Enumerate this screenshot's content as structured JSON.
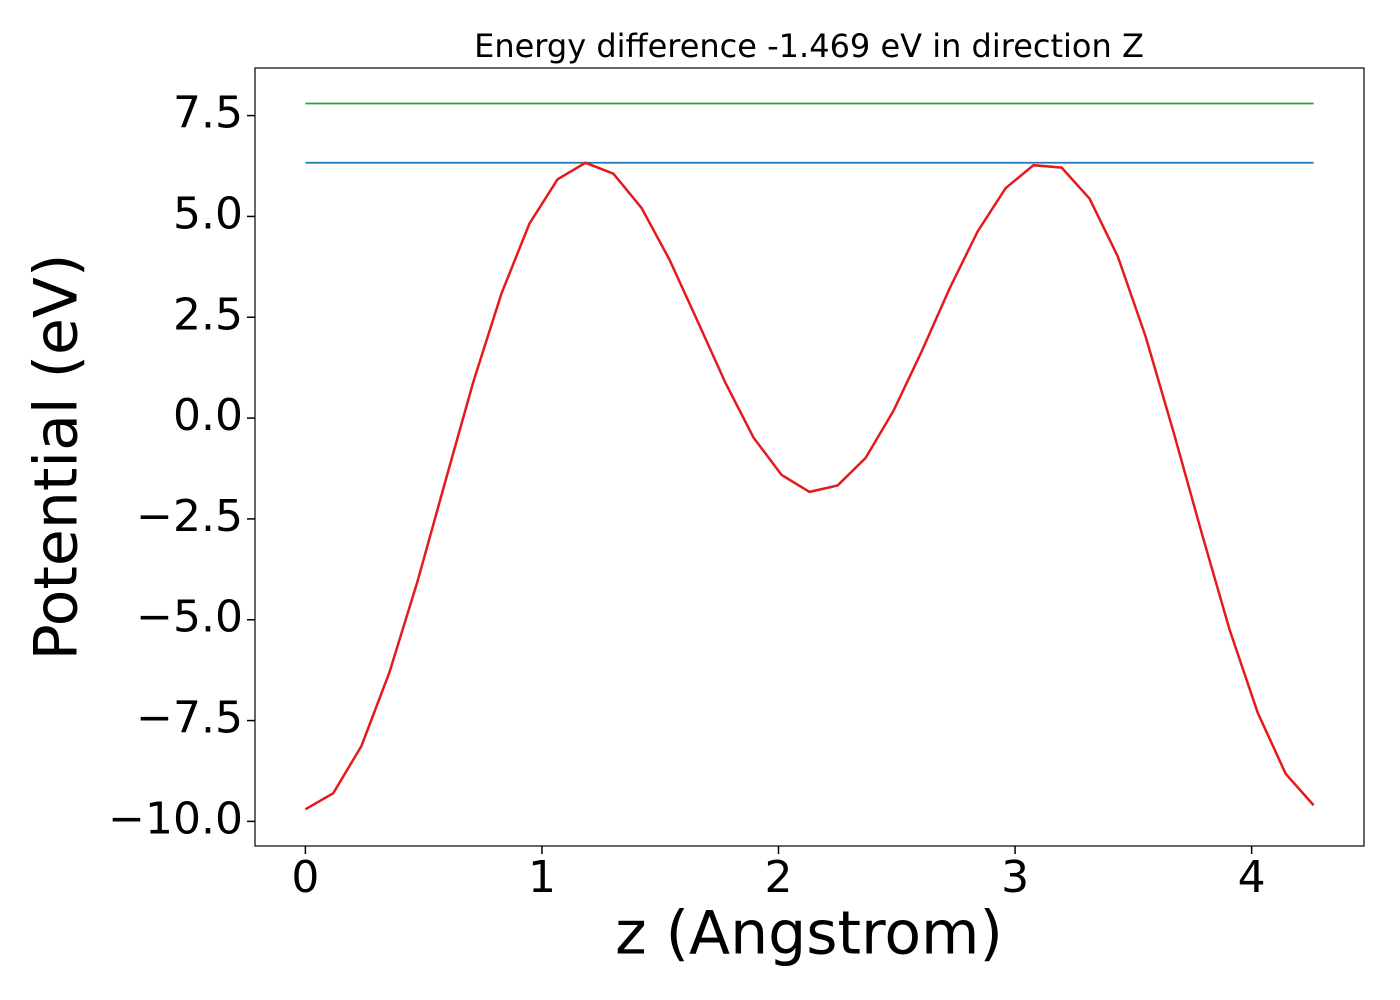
{
  "chart_data": {
    "type": "line",
    "title": "Energy difference -1.469 eV in direction Z",
    "x_label": "z (Angstrom)",
    "y_label": "Potential (eV)",
    "xlim": [
      -0.213,
      4.475
    ],
    "ylim": [
      -10.61,
      8.68
    ],
    "xticks": [
      0,
      1,
      2,
      3,
      4
    ],
    "yticks": [
      {
        "value": -10,
        "label": "−10.0"
      },
      {
        "value": -7.5,
        "label": "−7.5"
      },
      {
        "value": -5,
        "label": "−5.0"
      },
      {
        "value": -2.5,
        "label": "−2.5"
      },
      {
        "value": 0,
        "label": "0.0"
      },
      2.5,
      {
        "value": 5,
        "label": "5.0"
      },
      7.5
    ],
    "series": [
      {
        "color": "#1f77b4",
        "x": [
          0,
          4.262
        ],
        "values": [
          6.33,
          6.33
        ]
      },
      {
        "color": "#2ca02c",
        "x": [
          0,
          4.262
        ],
        "values": [
          7.8,
          7.8
        ]
      },
      {
        "color": "#e41a1c",
        "x": [
          0,
          0.118,
          0.237,
          0.355,
          0.474,
          0.592,
          0.71,
          0.829,
          0.947,
          1.066,
          1.184,
          1.302,
          1.421,
          1.539,
          1.658,
          1.776,
          1.894,
          2.013,
          2.131,
          2.25,
          2.368,
          2.486,
          2.605,
          2.723,
          2.842,
          2.96,
          3.078,
          3.197,
          3.315,
          3.434,
          3.552,
          3.67,
          3.789,
          3.907,
          4.026,
          4.144,
          4.262
        ],
        "values": [
          -9.7,
          -9.3,
          -8.13,
          -6.31,
          -4.05,
          -1.56,
          0.9,
          3.09,
          4.82,
          5.92,
          6.33,
          6.06,
          5.21,
          3.93,
          2.4,
          0.87,
          -0.48,
          -1.41,
          -1.83,
          -1.67,
          -0.99,
          0.18,
          1.65,
          3.21,
          4.63,
          5.7,
          6.27,
          6.21,
          5.44,
          4.01,
          2.02,
          -0.35,
          -2.85,
          -5.25,
          -7.31,
          -8.82,
          -9.6
        ]
      }
    ]
  }
}
